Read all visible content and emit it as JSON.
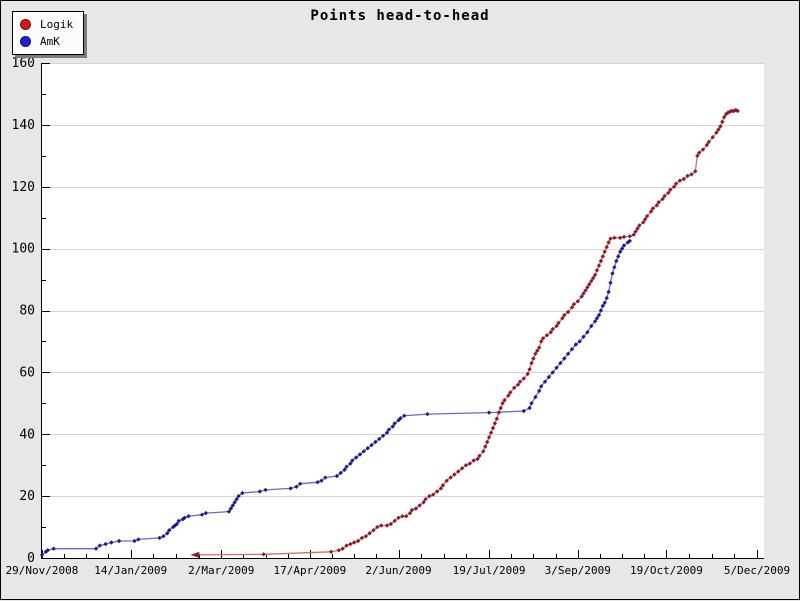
{
  "title": "Points head-to-head",
  "legend": {
    "items": [
      {
        "label": "Logik",
        "color": "#d31717"
      },
      {
        "label": "AmK",
        "color": "#1f1fd3"
      }
    ]
  },
  "chart_data": {
    "type": "line",
    "title": "Points head-to-head",
    "xlabel": "",
    "ylabel": "",
    "grid": "horizontal-major",
    "legend_position": "top-left",
    "colors": {
      "background": "#e7e7e7",
      "plot_background": "#ffffff",
      "gridline": "#d4d4d4",
      "axis": "#000000"
    },
    "x_axis": {
      "unit": "days since 29/Nov/2008",
      "max_day": 371,
      "major_tick_days": [
        0,
        46,
        93,
        139,
        185,
        232,
        278,
        324,
        371
      ],
      "tick_labels": [
        "29/Nov/2008",
        "14/Jan/2009",
        "2/Mar/2009",
        "17/Apr/2009",
        "2/Jun/2009",
        "19/Jul/2009",
        "3/Sep/2009",
        "19/Oct/2009",
        "5/Dec/2009"
      ],
      "minor_divisions_per_major": 4
    },
    "y_axis": {
      "min": 0,
      "max": 160,
      "major_step": 20,
      "minor_step": 10,
      "tick_labels": [
        "0",
        "20",
        "40",
        "60",
        "80",
        "100",
        "120",
        "140",
        "160"
      ]
    },
    "series": [
      {
        "name": "AmK",
        "line_color": "#6a6ace",
        "marker_color": "#1c1c8c",
        "start_marker": "diamond",
        "points": [
          [
            0,
            1
          ],
          [
            2,
            2
          ],
          [
            3,
            2.5
          ],
          [
            6,
            3
          ],
          [
            28,
            3
          ],
          [
            30,
            4
          ],
          [
            33,
            4.5
          ],
          [
            36,
            5
          ],
          [
            40,
            5.5
          ],
          [
            48,
            5.5
          ],
          [
            50,
            6
          ],
          [
            61,
            6.5
          ],
          [
            63,
            7
          ],
          [
            65,
            8
          ],
          [
            66,
            9
          ],
          [
            68,
            10
          ],
          [
            69,
            10.5
          ],
          [
            70,
            11
          ],
          [
            71,
            12
          ],
          [
            73,
            12.5
          ],
          [
            74,
            13
          ],
          [
            76,
            13.5
          ],
          [
            83,
            14
          ],
          [
            85,
            14.5
          ],
          [
            97,
            15
          ],
          [
            98,
            16
          ],
          [
            99,
            17
          ],
          [
            100,
            18
          ],
          [
            101,
            19
          ],
          [
            102,
            20
          ],
          [
            104,
            21
          ],
          [
            113,
            21.5
          ],
          [
            116,
            22
          ],
          [
            129,
            22.5
          ],
          [
            132,
            23
          ],
          [
            134,
            24
          ],
          [
            143,
            24.5
          ],
          [
            145,
            25
          ],
          [
            147,
            26
          ],
          [
            153,
            26.5
          ],
          [
            155,
            27.5
          ],
          [
            157,
            28.5
          ],
          [
            158,
            29.5
          ],
          [
            160,
            30.5
          ],
          [
            161,
            31.5
          ],
          [
            163,
            32.5
          ],
          [
            165,
            33.5
          ],
          [
            167,
            34.5
          ],
          [
            169,
            35.5
          ],
          [
            171,
            36.5
          ],
          [
            173,
            37.5
          ],
          [
            175,
            38.5
          ],
          [
            177,
            39.5
          ],
          [
            179,
            40.5
          ],
          [
            180,
            41.5
          ],
          [
            182,
            42.5
          ],
          [
            183,
            43.5
          ],
          [
            185,
            44.5
          ],
          [
            186,
            45.2
          ],
          [
            188,
            46
          ],
          [
            200,
            46.5
          ],
          [
            232,
            47
          ],
          [
            250,
            47.5
          ],
          [
            253,
            48.5
          ],
          [
            254,
            50
          ],
          [
            256,
            52
          ],
          [
            258,
            54
          ],
          [
            259,
            55.5
          ],
          [
            261,
            57
          ],
          [
            263,
            58.5
          ],
          [
            265,
            60
          ],
          [
            267,
            61.5
          ],
          [
            269,
            63
          ],
          [
            271,
            64.5
          ],
          [
            273,
            66
          ],
          [
            275,
            67.5
          ],
          [
            277,
            69
          ],
          [
            279,
            70
          ],
          [
            281,
            71.5
          ],
          [
            283,
            73
          ],
          [
            285,
            75
          ],
          [
            287,
            76.5
          ],
          [
            288,
            77.5
          ],
          [
            289,
            78.5
          ],
          [
            290,
            80
          ],
          [
            291,
            81.5
          ],
          [
            292,
            82.5
          ],
          [
            293,
            84
          ],
          [
            294,
            86
          ],
          [
            295,
            89
          ],
          [
            296,
            92
          ],
          [
            297,
            94
          ],
          [
            298,
            96
          ],
          [
            299,
            97.5
          ],
          [
            300,
            99
          ],
          [
            301,
            100
          ],
          [
            302,
            101
          ],
          [
            304,
            102
          ],
          [
            305,
            102.5
          ]
        ]
      },
      {
        "name": "Logik",
        "line_color": "#d1726a",
        "marker_color": "#8b1a28",
        "start_marker": "arrow-left",
        "points": [
          [
            79,
            1
          ],
          [
            115,
            1.2
          ],
          [
            150,
            2
          ],
          [
            154,
            2.5
          ],
          [
            156,
            3
          ],
          [
            158,
            4
          ],
          [
            160,
            4.5
          ],
          [
            162,
            5
          ],
          [
            164,
            5.5
          ],
          [
            166,
            6.5
          ],
          [
            168,
            7
          ],
          [
            170,
            8
          ],
          [
            172,
            9
          ],
          [
            174,
            10
          ],
          [
            176,
            10.5
          ],
          [
            179,
            10.5
          ],
          [
            181,
            11
          ],
          [
            183,
            12
          ],
          [
            185,
            13
          ],
          [
            187,
            13.5
          ],
          [
            189,
            13.5
          ],
          [
            191,
            14.5
          ],
          [
            192,
            15.5
          ],
          [
            194,
            16
          ],
          [
            196,
            17
          ],
          [
            198,
            18
          ],
          [
            199,
            19
          ],
          [
            201,
            20
          ],
          [
            203,
            20.5
          ],
          [
            205,
            21.5
          ],
          [
            207,
            22.5
          ],
          [
            208,
            23.5
          ],
          [
            210,
            25
          ],
          [
            212,
            26
          ],
          [
            214,
            27
          ],
          [
            216,
            28
          ],
          [
            218,
            29
          ],
          [
            220,
            30
          ],
          [
            222,
            30.5
          ],
          [
            224,
            31.5
          ],
          [
            226,
            32
          ],
          [
            227,
            33
          ],
          [
            229,
            34.5
          ],
          [
            230,
            36
          ],
          [
            231,
            37.5
          ],
          [
            232,
            39
          ],
          [
            233,
            40.5
          ],
          [
            234,
            42
          ],
          [
            235,
            43.5
          ],
          [
            236,
            45
          ],
          [
            237,
            47
          ],
          [
            238,
            48.5
          ],
          [
            239,
            50
          ],
          [
            240,
            51
          ],
          [
            242,
            52.5
          ],
          [
            243,
            53.5
          ],
          [
            245,
            55
          ],
          [
            247,
            56
          ],
          [
            248,
            57
          ],
          [
            250,
            58
          ],
          [
            252,
            59.5
          ],
          [
            253,
            61
          ],
          [
            254,
            63
          ],
          [
            255,
            64.5
          ],
          [
            256,
            66
          ],
          [
            257,
            67
          ],
          [
            258,
            68
          ],
          [
            259,
            70
          ],
          [
            260,
            71
          ],
          [
            262,
            72
          ],
          [
            264,
            73
          ],
          [
            265,
            74
          ],
          [
            267,
            75
          ],
          [
            268,
            76
          ],
          [
            270,
            77.5
          ],
          [
            271,
            78.5
          ],
          [
            273,
            79.5
          ],
          [
            275,
            81
          ],
          [
            276,
            82
          ],
          [
            278,
            83
          ],
          [
            280,
            84.5
          ],
          [
            281,
            85.5
          ],
          [
            282,
            86.5
          ],
          [
            283,
            87.5
          ],
          [
            284,
            88.5
          ],
          [
            285,
            89.5
          ],
          [
            286,
            90.5
          ],
          [
            287,
            91.5
          ],
          [
            288,
            93
          ],
          [
            289,
            94.5
          ],
          [
            290,
            96
          ],
          [
            291,
            97.5
          ],
          [
            292,
            99
          ],
          [
            293,
            100.5
          ],
          [
            294,
            102
          ],
          [
            295,
            103.2
          ],
          [
            297,
            103.5
          ],
          [
            300,
            103.5
          ],
          [
            302,
            103.8
          ],
          [
            305,
            104
          ],
          [
            307,
            104.5
          ],
          [
            308,
            105.5
          ],
          [
            309,
            106.5
          ],
          [
            310,
            107.5
          ],
          [
            312,
            108.5
          ],
          [
            313,
            109.5
          ],
          [
            314,
            110.5
          ],
          [
            316,
            112
          ],
          [
            317,
            113
          ],
          [
            319,
            114
          ],
          [
            320,
            115
          ],
          [
            322,
            116
          ],
          [
            323,
            117
          ],
          [
            325,
            118
          ],
          [
            326,
            119
          ],
          [
            328,
            120
          ],
          [
            329,
            121
          ],
          [
            331,
            122
          ],
          [
            333,
            122.5
          ],
          [
            335,
            123.5
          ],
          [
            337,
            124
          ],
          [
            339,
            125
          ],
          [
            340,
            130
          ],
          [
            341,
            131
          ],
          [
            343,
            132
          ],
          [
            345,
            133.5
          ],
          [
            346,
            134.5
          ],
          [
            348,
            136
          ],
          [
            350,
            137.5
          ],
          [
            351,
            138.5
          ],
          [
            352,
            139.5
          ],
          [
            353,
            141
          ],
          [
            354,
            142.5
          ],
          [
            355,
            143.5
          ],
          [
            356,
            144
          ],
          [
            357,
            144.3
          ],
          [
            358,
            144.5
          ],
          [
            359,
            144.5
          ],
          [
            360,
            144.8
          ],
          [
            361,
            144.5
          ]
        ]
      }
    ]
  }
}
